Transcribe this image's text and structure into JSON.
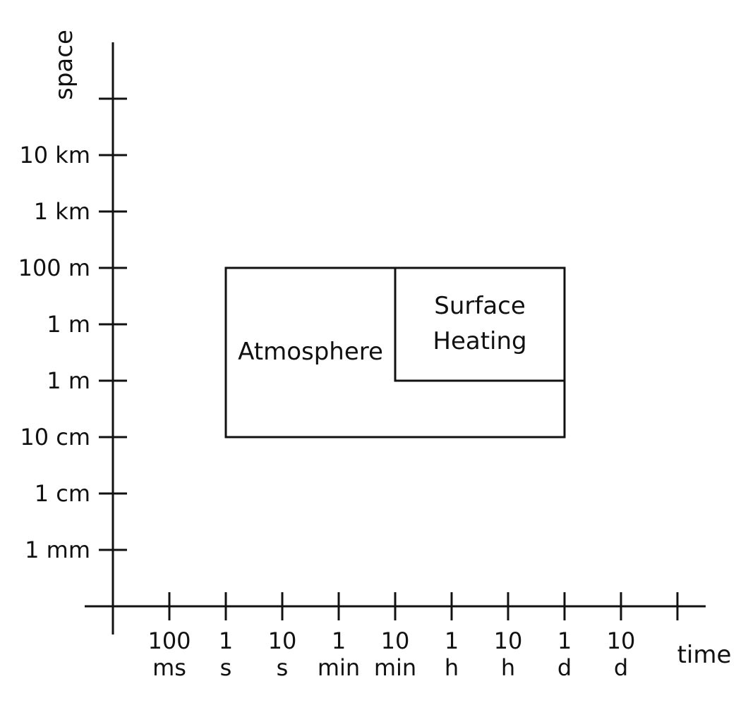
{
  "axes": {
    "x_name": "time",
    "y_name": "space",
    "x_ticks": [
      {
        "line1": "100",
        "line2": "ms"
      },
      {
        "line1": "1",
        "line2": "s"
      },
      {
        "line1": "10",
        "line2": "s"
      },
      {
        "line1": "1",
        "line2": "min"
      },
      {
        "line1": "10",
        "line2": "min"
      },
      {
        "line1": "1",
        "line2": "h"
      },
      {
        "line1": "10",
        "line2": "h"
      },
      {
        "line1": "1",
        "line2": "d"
      },
      {
        "line1": "10",
        "line2": "d"
      },
      {
        "line1": "",
        "line2": ""
      }
    ],
    "y_ticks": [
      "",
      "10 km",
      "1 km",
      "100 m",
      "1 m",
      "1 m",
      "10 cm",
      "1 cm",
      "1 mm"
    ]
  },
  "regions": {
    "atmosphere": {
      "label": "Atmosphere",
      "time_from": "1 s",
      "time_to": "1 d",
      "space_from": "10 cm",
      "space_to": "100 m"
    },
    "surface_heating": {
      "label_line1": "Surface",
      "label_line2": "Heating",
      "time_from": "10 min",
      "time_to": "1 d",
      "space_from": "1 m",
      "space_to": "100 m"
    }
  },
  "colors": {
    "stroke": "#111111",
    "background": "#ffffff"
  }
}
